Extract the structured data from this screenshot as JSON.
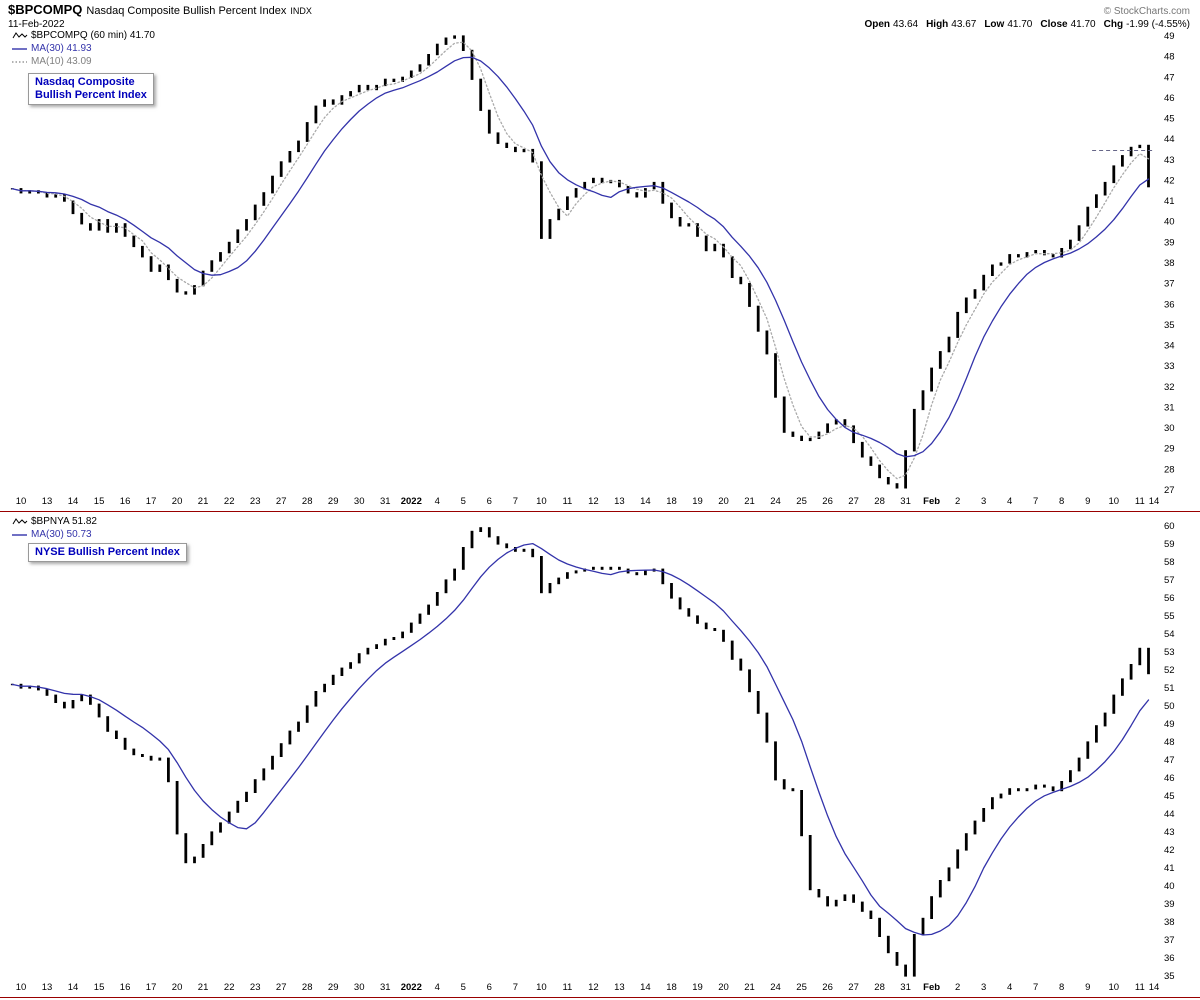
{
  "header": {
    "symbol": "$BPCOMPQ",
    "name": "Nasdaq Composite Bullish Percent Index",
    "exchange": "INDX",
    "date": "11-Feb-2022",
    "copyright": "© StockCharts.com",
    "quote": [
      {
        "label": "Open",
        "value": "43.64"
      },
      {
        "label": "High",
        "value": "43.67"
      },
      {
        "label": "Low",
        "value": "41.70"
      },
      {
        "label": "Close",
        "value": "41.70"
      },
      {
        "label": "Chg",
        "value": "-1.99 (-4.55%)"
      }
    ]
  },
  "colors": {
    "price": "#000000",
    "ma30": "#3333aa",
    "ma10": "#aaaaaa",
    "divider": "#990000",
    "annotation_text": "#0000bb",
    "axis_text": "#000000",
    "copyright": "#777777"
  },
  "x_labels": [
    "10",
    "13",
    "14",
    "15",
    "16",
    "17",
    "20",
    "21",
    "22",
    "23",
    "27",
    "28",
    "29",
    "30",
    "31",
    "2022",
    "4",
    "5",
    "6",
    "7",
    "10",
    "11",
    "12",
    "13",
    "14",
    "18",
    "19",
    "20",
    "21",
    "24",
    "25",
    "26",
    "27",
    "28",
    "31",
    "Feb",
    "2",
    "3",
    "4",
    "7",
    "8",
    "9",
    "10",
    "11",
    "14"
  ],
  "bold_x_labels": [
    "2022",
    "Feb"
  ],
  "chart_data": [
    {
      "type": "candlestick",
      "symbol": "$BPCOMPQ",
      "title": "$BPCOMPQ (60 min) 41.70",
      "annotation_lines": [
        "Nasdaq Composite",
        "Bullish Percent Index"
      ],
      "legend": [
        {
          "swatch": "squiggle",
          "color": "#000000",
          "text_color": "#000000",
          "label": "$BPCOMPQ (60 min) 41.70"
        },
        {
          "swatch": "line",
          "color": "#3333aa",
          "text_color": "#3333aa",
          "label": "MA(30) 41.93"
        },
        {
          "swatch": "dotted",
          "color": "#999999",
          "text_color": "#808080",
          "label": "MA(10) 43.09"
        }
      ],
      "ylim": [
        27,
        49
      ],
      "y_step": 1,
      "grid": false,
      "y_axis_side": "right",
      "samples_per_day": 3,
      "ma": [
        {
          "id": "ma30-line",
          "label": "MA(30)",
          "value": 41.93,
          "window_samples": 9,
          "color": "#3333aa",
          "dash": null
        },
        {
          "id": "ma10-line",
          "label": "MA(10)",
          "value": 43.09,
          "window_samples": 4,
          "color": "#aaaaaa",
          "dash": "1.5,2.5"
        }
      ],
      "dashed_level": 43.45,
      "values": [
        41.6,
        41.4,
        41.5,
        41.4,
        41.2,
        41.3,
        41.0,
        40.4,
        39.9,
        39.6,
        40.1,
        39.5,
        39.9,
        39.3,
        38.8,
        38.3,
        37.6,
        37.9,
        37.2,
        36.6,
        36.5,
        36.9,
        37.6,
        38.1,
        38.5,
        39.0,
        39.6,
        40.1,
        40.8,
        41.4,
        42.2,
        42.9,
        43.4,
        43.9,
        44.8,
        45.6,
        45.9,
        45.7,
        46.1,
        46.3,
        46.6,
        46.4,
        46.6,
        46.9,
        46.8,
        47.0,
        47.3,
        47.6,
        48.1,
        48.6,
        48.9,
        49.0,
        48.3,
        46.9,
        45.4,
        44.3,
        43.8,
        43.6,
        43.4,
        43.5,
        42.9,
        39.2,
        40.1,
        40.6,
        41.2,
        41.6,
        41.9,
        42.1,
        41.9,
        42.0,
        41.7,
        41.4,
        41.2,
        41.6,
        41.9,
        40.9,
        40.2,
        39.8,
        39.9,
        39.3,
        38.6,
        38.9,
        38.3,
        37.3,
        37.0,
        35.9,
        34.7,
        33.6,
        31.5,
        29.8,
        29.6,
        29.4,
        29.5,
        29.8,
        30.2,
        30.4,
        30.1,
        29.3,
        28.6,
        28.2,
        27.6,
        27.3,
        27.1,
        28.9,
        30.9,
        31.8,
        32.9,
        33.7,
        34.4,
        35.6,
        36.3,
        36.7,
        37.4,
        37.9,
        38.0,
        38.4,
        38.3,
        38.5,
        38.6,
        38.4,
        38.3,
        38.7,
        39.1,
        39.8,
        40.7,
        41.3,
        41.9,
        42.7,
        43.2,
        43.6,
        43.7,
        41.7
      ]
    },
    {
      "type": "candlestick",
      "symbol": "$BPNYA",
      "title": "$BPNYA 51.82",
      "annotation_lines": [
        "NYSE Bullish Percent Index"
      ],
      "legend": [
        {
          "swatch": "squiggle",
          "color": "#000000",
          "text_color": "#000000",
          "label": "$BPNYA 51.82"
        },
        {
          "swatch": "line",
          "color": "#3333aa",
          "text_color": "#3333aa",
          "label": "MA(30) 50.73"
        }
      ],
      "ylim": [
        35,
        60
      ],
      "y_step": 1,
      "grid": false,
      "y_axis_side": "right",
      "samples_per_day": 3,
      "ma": [
        {
          "id": "ma30-line",
          "label": "MA(30)",
          "value": 50.73,
          "window_samples": 9,
          "color": "#3333aa",
          "dash": null
        }
      ],
      "dashed_level": null,
      "values": [
        51.2,
        51.0,
        51.1,
        50.9,
        50.6,
        50.2,
        49.9,
        50.3,
        50.6,
        50.1,
        49.4,
        48.6,
        48.2,
        47.6,
        47.3,
        47.2,
        47.0,
        47.1,
        45.8,
        42.9,
        41.3,
        41.6,
        42.3,
        43.0,
        43.5,
        44.1,
        44.7,
        45.2,
        45.9,
        46.5,
        47.2,
        47.9,
        48.6,
        49.1,
        50.0,
        50.8,
        51.2,
        51.7,
        52.1,
        52.4,
        52.9,
        53.2,
        53.4,
        53.7,
        53.8,
        54.1,
        54.6,
        55.1,
        55.6,
        56.3,
        57.0,
        57.6,
        58.8,
        59.7,
        59.9,
        59.4,
        59.0,
        58.8,
        58.6,
        58.7,
        58.3,
        56.3,
        56.8,
        57.1,
        57.4,
        57.5,
        57.6,
        57.7,
        57.6,
        57.7,
        57.6,
        57.4,
        57.3,
        57.5,
        57.6,
        56.8,
        56.0,
        55.4,
        55.0,
        54.6,
        54.3,
        54.2,
        53.6,
        52.6,
        52.0,
        50.8,
        49.6,
        48.0,
        45.9,
        45.4,
        45.3,
        42.8,
        39.8,
        39.4,
        38.9,
        39.2,
        39.5,
        39.1,
        38.6,
        38.2,
        37.2,
        36.3,
        35.6,
        35.0,
        37.3,
        38.2,
        39.4,
        40.3,
        41.0,
        42.0,
        42.9,
        43.6,
        44.3,
        44.9,
        45.1,
        45.4,
        45.3,
        45.4,
        45.6,
        45.5,
        45.3,
        45.8,
        46.4,
        47.1,
        48.0,
        48.9,
        49.6,
        50.6,
        51.5,
        52.3,
        53.2,
        51.8
      ]
    }
  ]
}
